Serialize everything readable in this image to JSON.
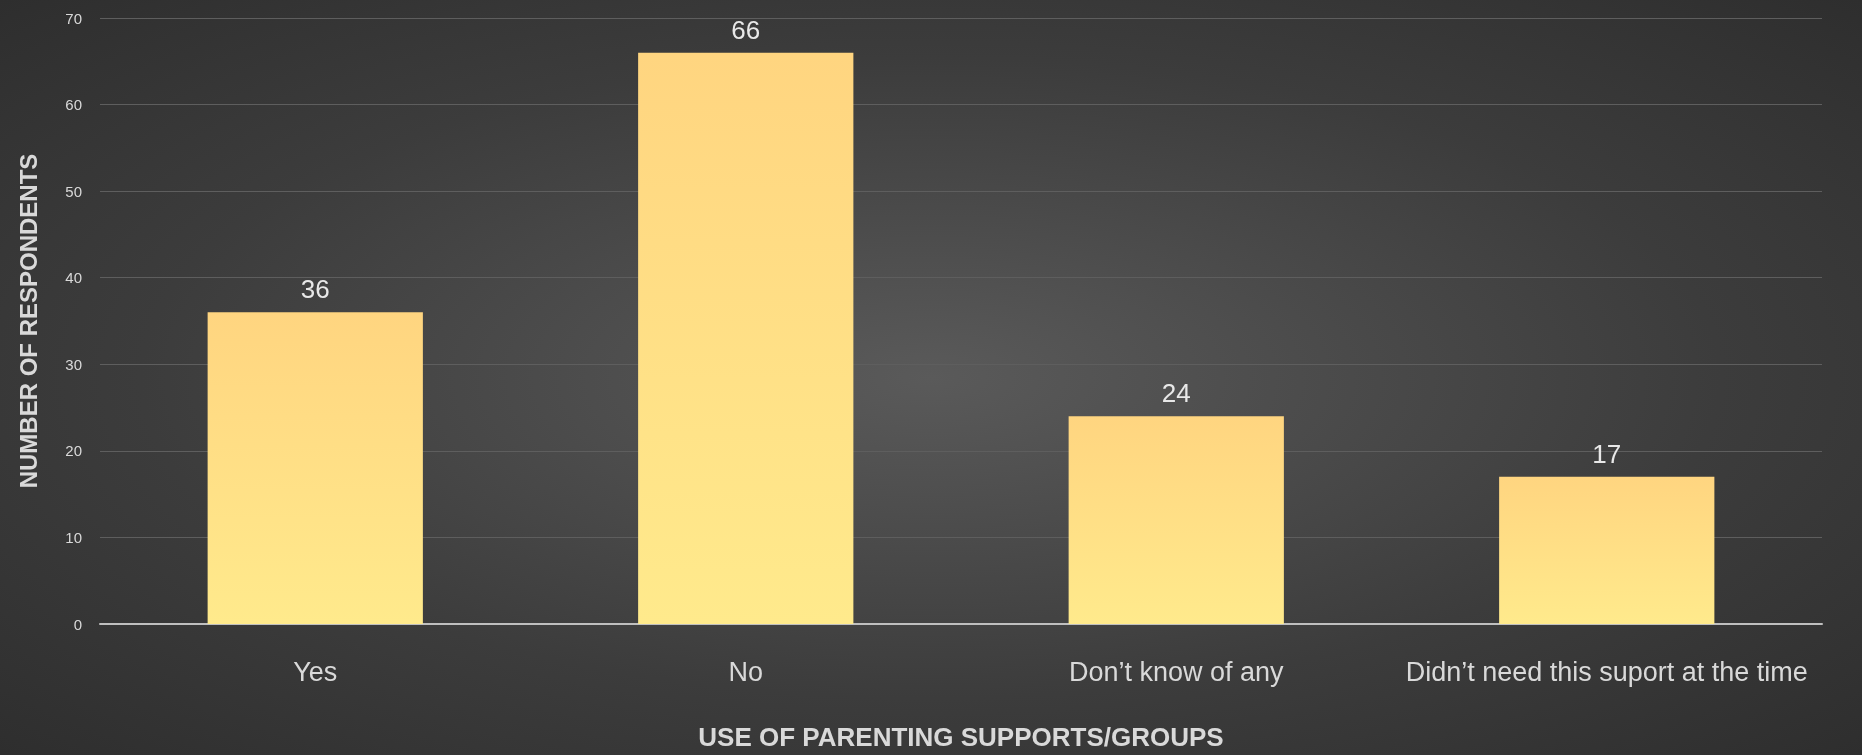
{
  "chart_data": {
    "type": "bar",
    "xlabel": "USE OF PARENTING SUPPORTS/GROUPS",
    "ylabel": "NUMBER OF RESPONDENTS",
    "categories": [
      "Yes",
      "No",
      "Don’t know of any",
      "Didn’t need this suport at the time"
    ],
    "values": [
      36,
      66,
      24,
      17
    ],
    "color": "#ffd580",
    "ylim": [
      0,
      70
    ],
    "yticks": [
      0,
      10,
      20,
      30,
      40,
      50,
      60,
      70
    ],
    "grid": "y",
    "data_labels": true
  }
}
